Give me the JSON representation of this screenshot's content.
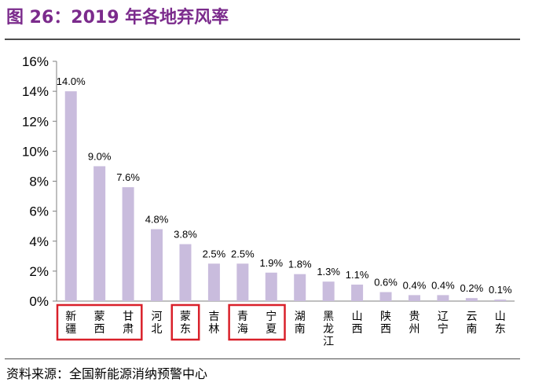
{
  "header": {
    "title": "图 26：2019 年各地弃风率"
  },
  "footer": {
    "source": "资料来源：全国新能源消纳预警中心"
  },
  "colors": {
    "bar": "#c9bcdd",
    "axis": "#7f7f7f",
    "highlight_box": "#d9202a",
    "title": "#7b2b8c"
  },
  "chart_data": {
    "type": "bar",
    "title": "2019 年各地弃风率",
    "xlabel": "",
    "ylabel": "",
    "ylim": [
      0,
      16
    ],
    "y_ticks": [
      "0%",
      "2%",
      "4%",
      "6%",
      "8%",
      "10%",
      "12%",
      "14%",
      "16%"
    ],
    "categories": [
      "新疆",
      "蒙西",
      "甘肃",
      "河北",
      "蒙东",
      "吉林",
      "青海",
      "宁夏",
      "湖南",
      "黑龙江",
      "山西",
      "陕西",
      "贵州",
      "辽宁",
      "云南",
      "山东"
    ],
    "values": [
      14.0,
      9.0,
      7.6,
      4.8,
      3.8,
      2.5,
      2.5,
      1.9,
      1.8,
      1.3,
      1.1,
      0.6,
      0.4,
      0.4,
      0.2,
      0.1
    ],
    "data_labels": [
      "14.0%",
      "9.0%",
      "7.6%",
      "4.8%",
      "3.8%",
      "2.5%",
      "2.5%",
      "1.9%",
      "1.8%",
      "1.3%",
      "1.1%",
      "0.6%",
      "0.4%",
      "0.4%",
      "0.2%",
      "0.1%"
    ],
    "highlight_groups": [
      [
        "新疆",
        "蒙西",
        "甘肃"
      ],
      [
        "蒙东"
      ],
      [
        "青海",
        "宁夏"
      ]
    ],
    "grid": false,
    "legend": "none"
  }
}
